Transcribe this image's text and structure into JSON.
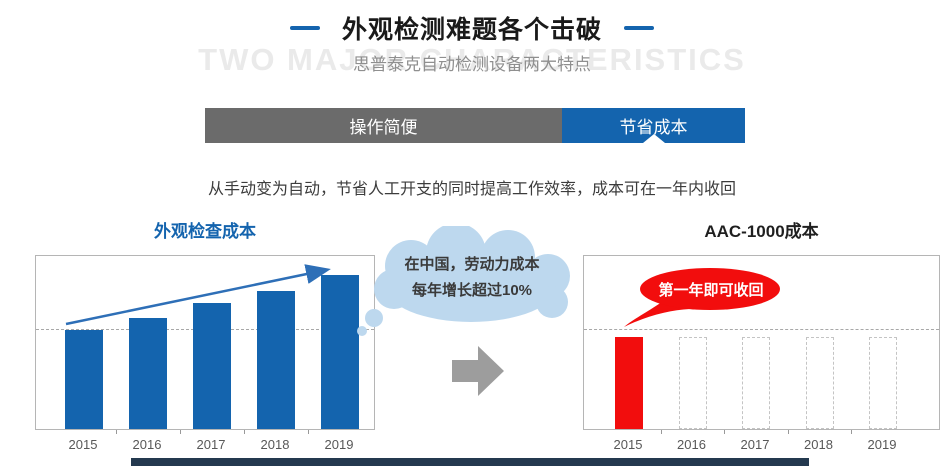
{
  "header": {
    "title": "外观检测难题各个击破",
    "watermark": "TWO MAJOR CHARACTERISTICS",
    "subtitle": "思普泰克自动检测设备两大特点"
  },
  "tabs": [
    {
      "label": "操作简便",
      "active": false
    },
    {
      "label": "节省成本",
      "active": true
    }
  ],
  "description": "从手动变为自动，节省人工开支的同时提高工作效率，成本可在一年内收回",
  "cloud_callout": {
    "line1": "在中国，劳动力成本",
    "line2": "每年增长超过10%"
  },
  "chart_data": [
    {
      "type": "bar",
      "title": "外观检查成本",
      "categories": [
        "2015",
        "2016",
        "2017",
        "2018",
        "2019"
      ],
      "values": [
        57,
        64,
        73,
        80,
        89
      ],
      "value_unit": "relative bar height % (no numeric axis shown)",
      "bar_styles": [
        "solid",
        "solid",
        "solid",
        "solid",
        "solid"
      ],
      "bar_color": "#1464AE",
      "baseline_percent": 58,
      "grid": "single dashed horizontal reference line at 2015 bar level",
      "legend": "none",
      "annotations": [
        {
          "type": "trend_arrow",
          "text": "",
          "note": "blue arrow rising from 2015 bar top to 2019 bar top"
        }
      ]
    },
    {
      "type": "bar",
      "title": "AAC-1000成本",
      "categories": [
        "2015",
        "2016",
        "2017",
        "2018",
        "2019"
      ],
      "values": [
        53,
        53,
        53,
        53,
        53
      ],
      "value_unit": "relative bar height % (no numeric axis shown)",
      "bar_styles": [
        "solid",
        "dashed",
        "dashed",
        "dashed",
        "dashed"
      ],
      "bar_color": "#F20D0D",
      "baseline_percent": 58,
      "grid": "single dashed horizontal reference line above bar tops",
      "legend": "none",
      "annotations": [
        {
          "type": "speech_bubble",
          "text": "第一年即可收回"
        }
      ]
    }
  ],
  "colors": {
    "accent_blue": "#1464AE",
    "tab_gray": "#6B6B6B",
    "alert_red": "#F20D0D",
    "cloud_blue": "#BDD8EE",
    "arrow_gray": "#9D9D9D",
    "footer_navy": "#24394F",
    "dashed_bar_outline": "#C4C4C4"
  }
}
